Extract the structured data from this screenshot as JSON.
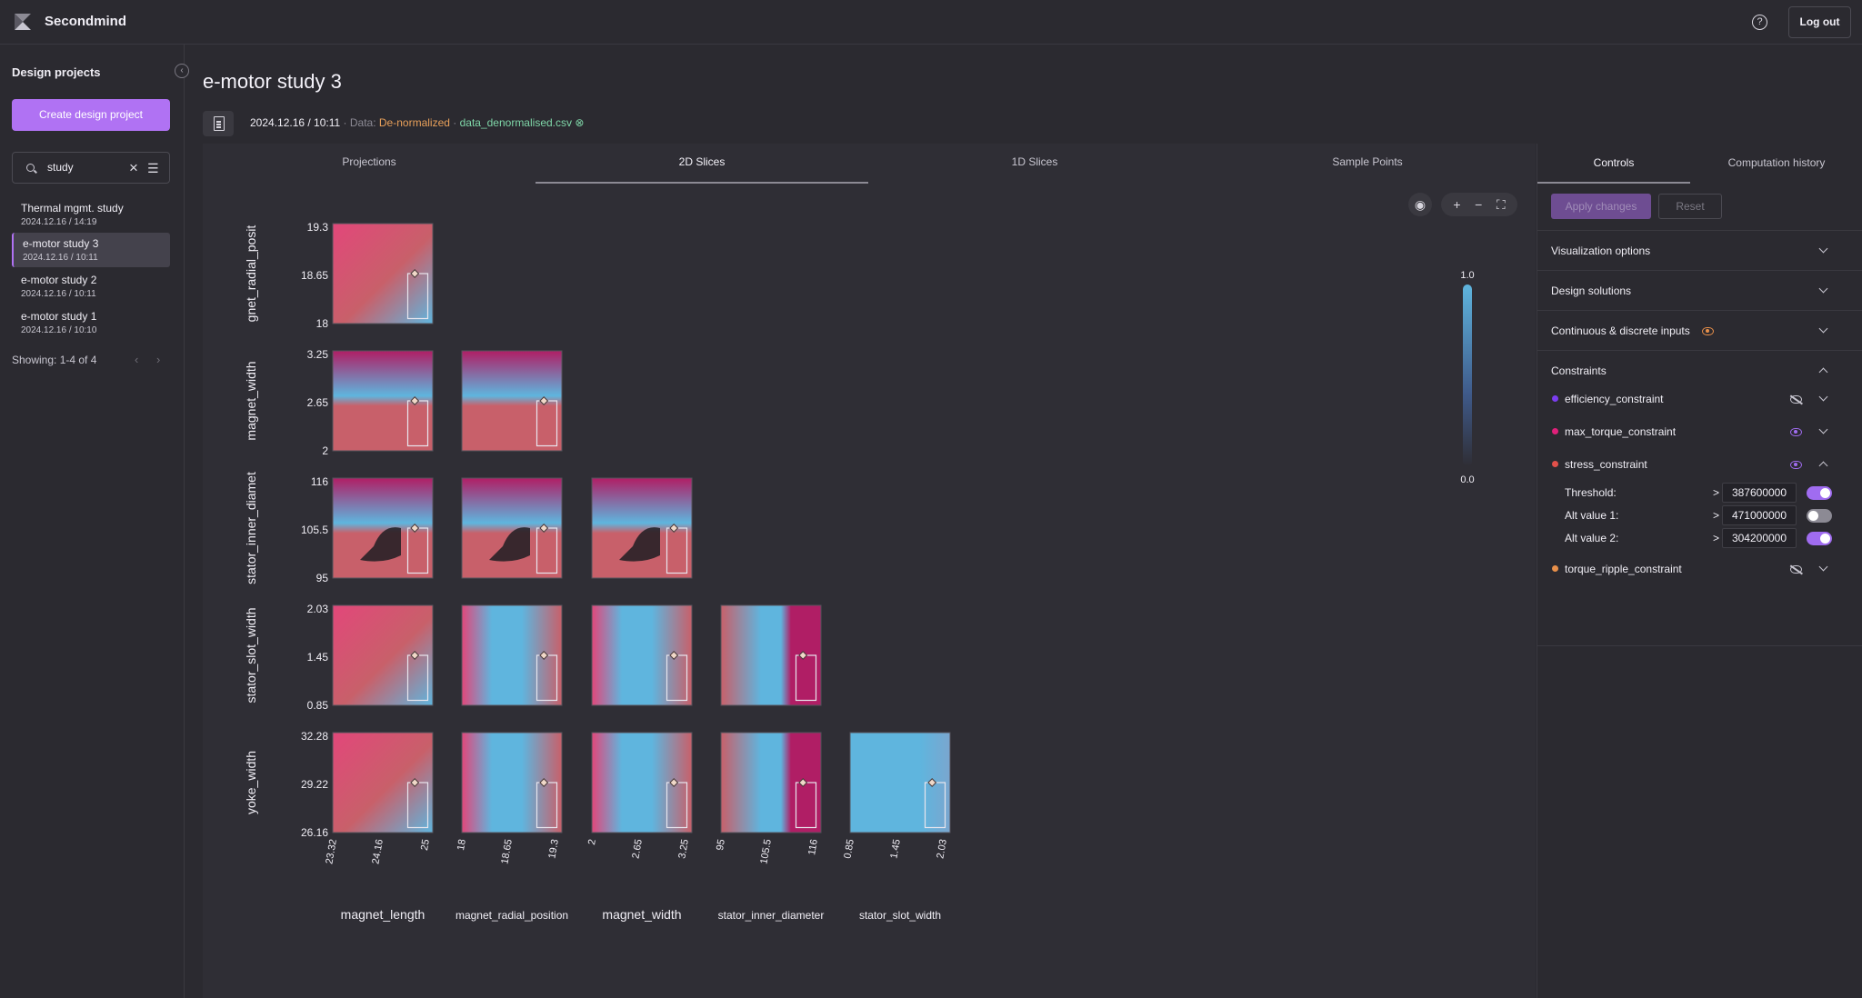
{
  "app": {
    "name": "Secondmind",
    "logout_label": "Log out"
  },
  "sidebar": {
    "title": "Design projects",
    "create_label": "Create design project",
    "search_value": "study",
    "projects": [
      {
        "name": "Thermal mgmt. study",
        "date": "2024.12.16 / 14:19"
      },
      {
        "name": "e-motor study 3",
        "date": "2024.12.16 / 10:11",
        "active": true
      },
      {
        "name": "e-motor study 2",
        "date": "2024.12.16 / 10:11"
      },
      {
        "name": "e-motor study 1",
        "date": "2024.12.16 / 10:10"
      }
    ],
    "showing": "Showing: 1-4 of 4"
  },
  "main": {
    "title": "e-motor study 3",
    "meta_date": "2024.12.16 / 10:11",
    "meta_sep1": " · Data: ",
    "meta_data_type": "De-normalized",
    "meta_sep2": " · ",
    "meta_file": "data_denormalised.csv",
    "tabs": [
      "Projections",
      "2D Slices",
      "1D Slices",
      "Sample Points"
    ],
    "active_tab": "2D Slices"
  },
  "chart_data": {
    "type": "heatmap",
    "layout": "lower-triangular pair plot",
    "columns": [
      {
        "name": "magnet_length",
        "ticks": [
          "23.32",
          "24.16",
          "25"
        ]
      },
      {
        "name": "magnet_radial_position",
        "ticks": [
          "18",
          "18.65",
          "19.3"
        ]
      },
      {
        "name": "magnet_width",
        "ticks": [
          "2",
          "2.65",
          "3.25"
        ]
      },
      {
        "name": "stator_inner_diameter",
        "ticks": [
          "95",
          "105.5",
          "116"
        ]
      },
      {
        "name": "stator_slot_width",
        "ticks": [
          "0.85",
          "1.45",
          "2.03"
        ]
      }
    ],
    "rows": [
      {
        "name": "gnet_radial_posit",
        "ticks": [
          "19.3",
          "18.65",
          "18"
        ]
      },
      {
        "name": "magnet_width",
        "ticks": [
          "3.25",
          "2.65",
          "2"
        ]
      },
      {
        "name": "stator_inner_diamet",
        "ticks": [
          "116",
          "105.5",
          "95"
        ]
      },
      {
        "name": "stator_slot_width",
        "ticks": [
          "2.03",
          "1.45",
          "0.85"
        ]
      },
      {
        "name": "yoke_width",
        "ticks": [
          "32.28",
          "29.22",
          "26.16"
        ]
      }
    ],
    "colorbar": {
      "max": "1.0",
      "min": "0.0"
    },
    "colors": {
      "pink": "#e2477a",
      "magenta": "#b01e65",
      "blue": "#5fb5de",
      "rose": "#c8606a"
    }
  },
  "controls": {
    "tabs": [
      "Controls",
      "Computation history"
    ],
    "apply_label": "Apply changes",
    "reset_label": "Reset",
    "sections": [
      "Visualization options",
      "Design solutions",
      "Continuous & discrete inputs",
      "Constraints"
    ],
    "constraints": [
      {
        "name": "efficiency_constraint",
        "color": "#7b3df0",
        "visible": false
      },
      {
        "name": "max_torque_constraint",
        "color": "#e0207a",
        "visible": true
      },
      {
        "name": "stress_constraint",
        "color": "#e2504a",
        "visible": true,
        "expanded": true
      },
      {
        "name": "torque_ripple_constraint",
        "color": "#e8904a",
        "visible": false
      }
    ],
    "thresholds": [
      {
        "label": "Threshold:",
        "op": ">",
        "value": "387600000",
        "enabled": true
      },
      {
        "label": "Alt value 1:",
        "op": ">",
        "value": "471000000",
        "enabled": false
      },
      {
        "label": "Alt value 2:",
        "op": ">",
        "value": "304200000",
        "enabled": true
      }
    ]
  }
}
